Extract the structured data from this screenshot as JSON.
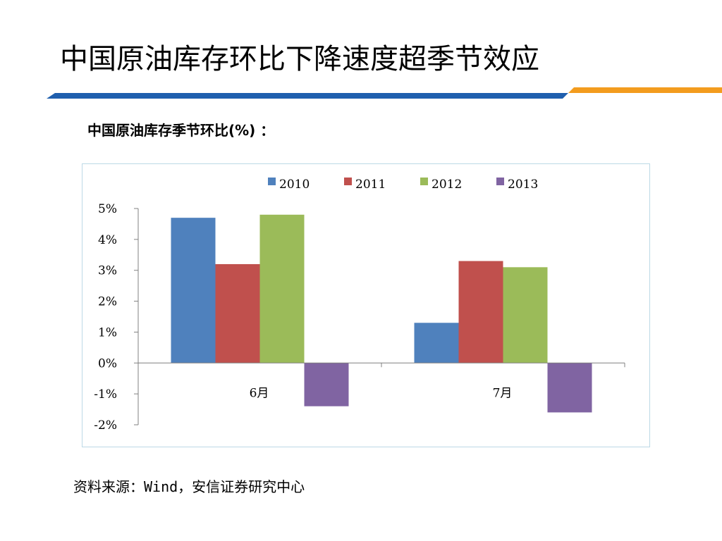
{
  "slide": {
    "title": "中国原油库存环比下降速度超季节效应",
    "chart_heading": "中国原油库存季节环比(%) ：",
    "source_note": "资料来源：Wind，安信证券研究中心"
  },
  "colors": {
    "header_blue": "#1f5fae",
    "header_orange": "#f39c1e",
    "chart_border": "#bcd9e6"
  },
  "chart_data": {
    "type": "bar",
    "title": "",
    "xlabel": "",
    "ylabel": "",
    "categories": [
      "6月",
      "7月"
    ],
    "series": [
      {
        "name": "2010",
        "color": "#4f81bd",
        "values": [
          4.7,
          1.3
        ]
      },
      {
        "name": "2011",
        "color": "#c0504d",
        "values": [
          3.2,
          3.3
        ]
      },
      {
        "name": "2012",
        "color": "#9bbb59",
        "values": [
          4.8,
          3.1
        ]
      },
      {
        "name": "2013",
        "color": "#8064a2",
        "values": [
          -1.4,
          -1.6
        ]
      }
    ],
    "ylim": [
      -2,
      5
    ],
    "yticks": [
      5,
      4,
      3,
      2,
      1,
      0,
      -1,
      -2
    ],
    "ytick_labels": [
      "5%",
      "4%",
      "3%",
      "2%",
      "1%",
      "0%",
      "-1%",
      "-2%"
    ],
    "grid": false,
    "legend_position": "top"
  }
}
